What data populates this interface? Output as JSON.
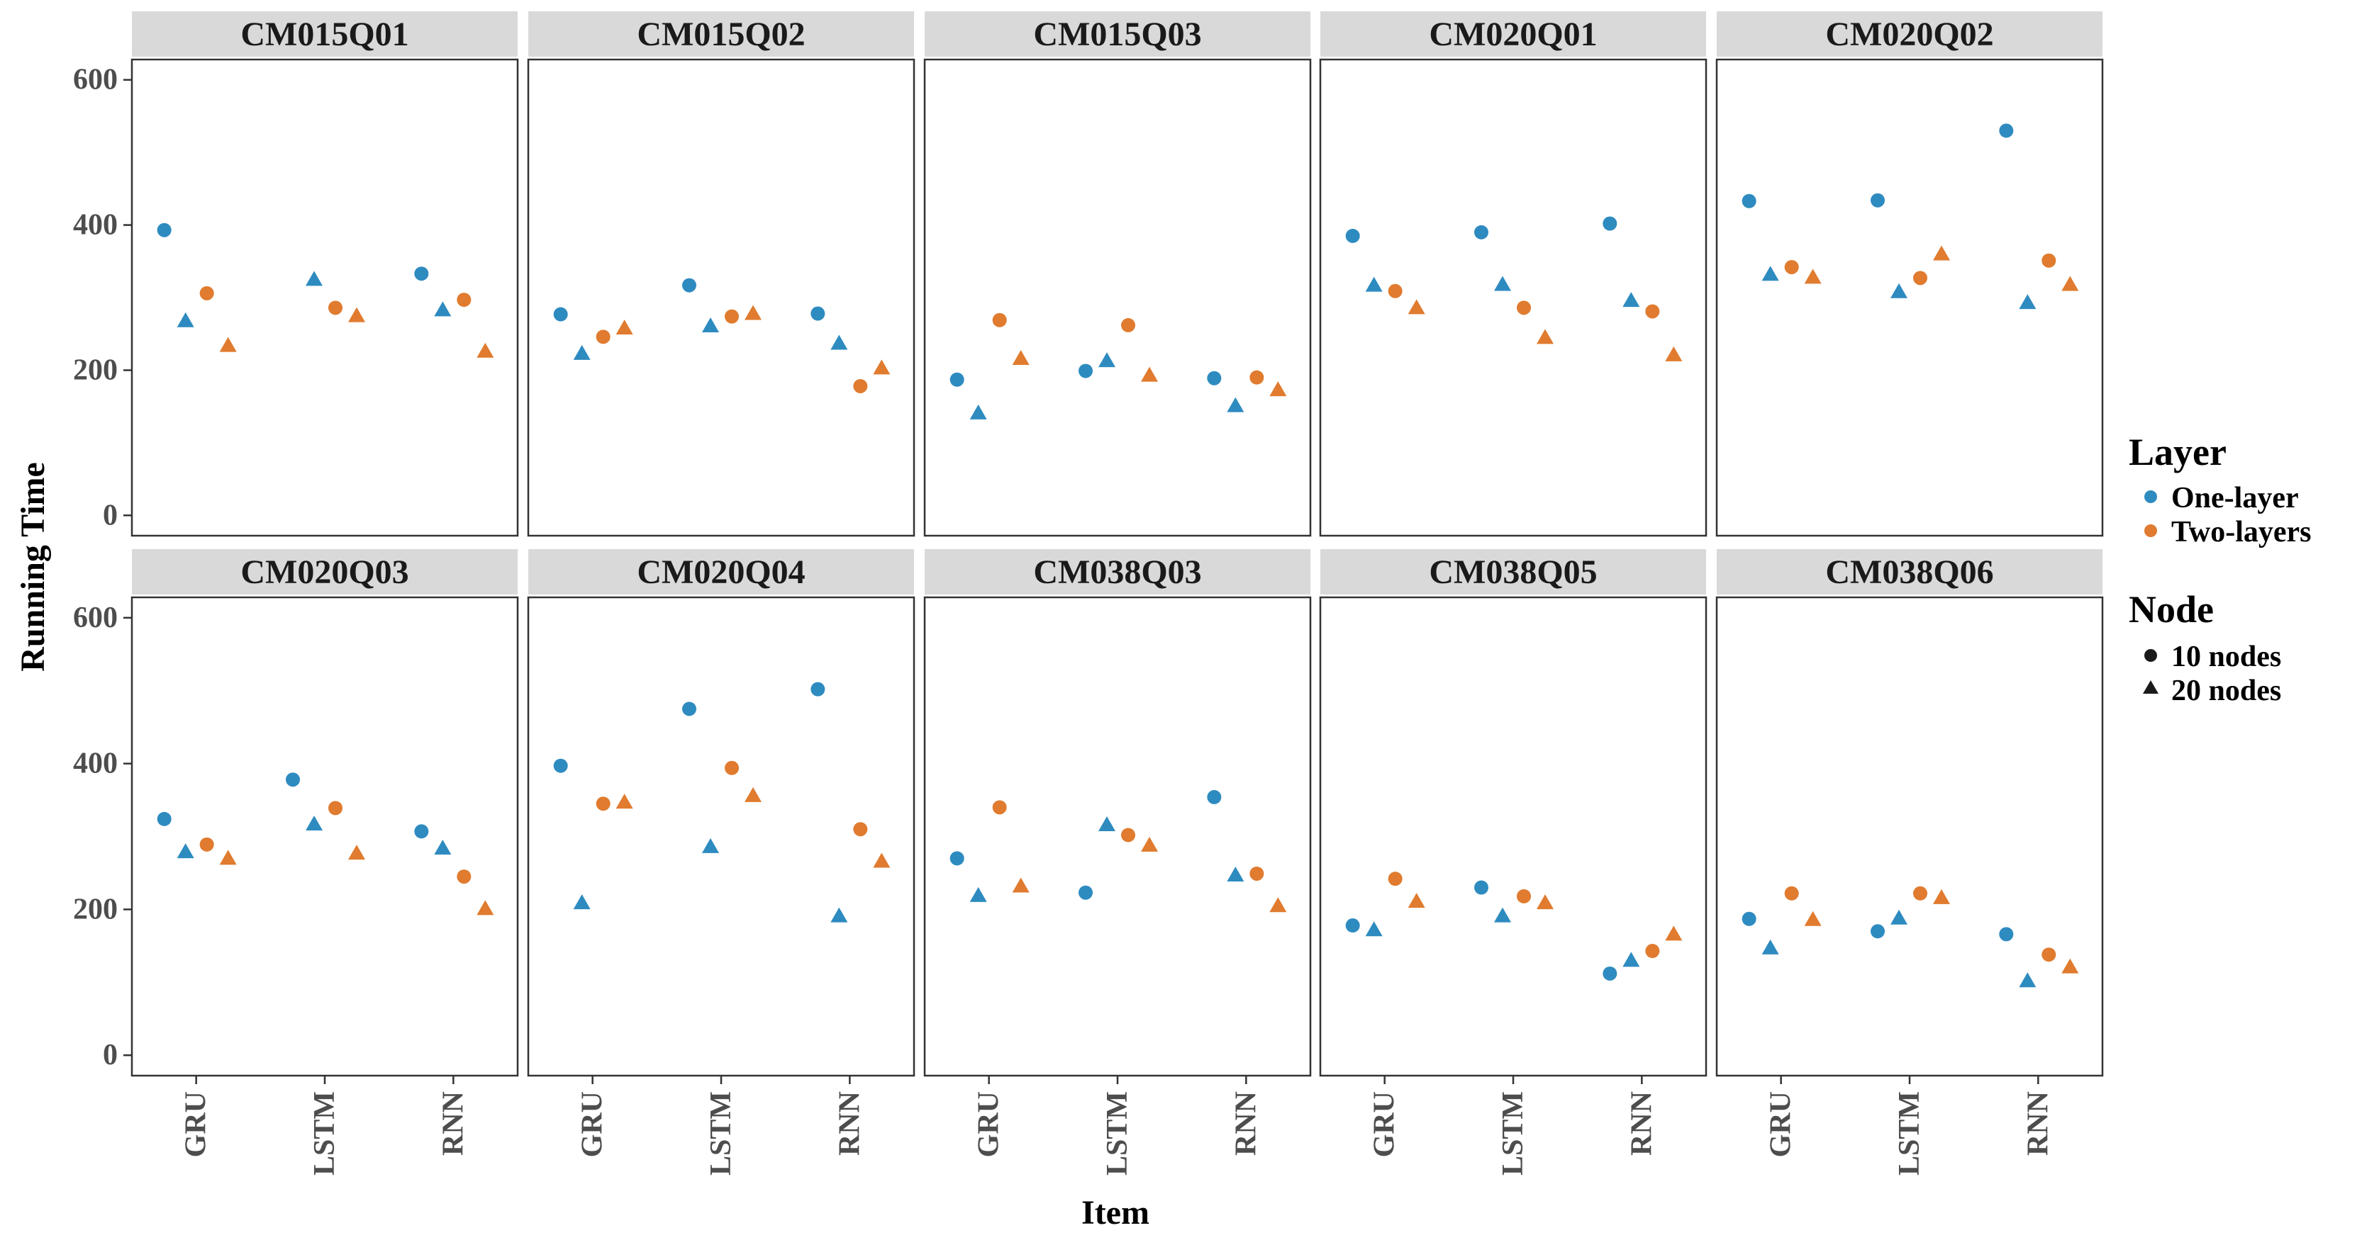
{
  "chart_data": {
    "type": "scatter",
    "xlabel": "Item",
    "ylabel": "Running Time",
    "ylim": [
      -28,
      628
    ],
    "yticks": [
      0,
      200,
      400,
      600
    ],
    "categories": [
      "GRU",
      "LSTM",
      "RNN"
    ],
    "grid": false,
    "legend_position": "right",
    "colors": {
      "One-layer": "#2E8BC0",
      "Two-layers": "#E07B2F"
    },
    "legend": {
      "layer_title": "Layer",
      "layer_items": [
        {
          "label": "One-layer",
          "color": "#2E8BC0"
        },
        {
          "label": "Two-layers",
          "color": "#E07B2F"
        }
      ],
      "node_title": "Node",
      "node_items": [
        {
          "label": "10 nodes",
          "shape": "circle"
        },
        {
          "label": "20 nodes",
          "shape": "triangle"
        }
      ]
    },
    "panels": [
      {
        "title": "CM015Q01",
        "points": [
          {
            "item": "GRU",
            "layer": "One-layer",
            "node": "10 nodes",
            "value": 393
          },
          {
            "item": "GRU",
            "layer": "One-layer",
            "node": "20 nodes",
            "value": 268
          },
          {
            "item": "GRU",
            "layer": "Two-layers",
            "node": "10 nodes",
            "value": 306
          },
          {
            "item": "GRU",
            "layer": "Two-layers",
            "node": "20 nodes",
            "value": 234
          },
          {
            "item": "LSTM",
            "layer": "One-layer",
            "node": "20 nodes",
            "value": 325
          },
          {
            "item": "LSTM",
            "layer": "Two-layers",
            "node": "10 nodes",
            "value": 286
          },
          {
            "item": "LSTM",
            "layer": "Two-layers",
            "node": "20 nodes",
            "value": 275
          },
          {
            "item": "RNN",
            "layer": "One-layer",
            "node": "10 nodes",
            "value": 333
          },
          {
            "item": "RNN",
            "layer": "One-layer",
            "node": "20 nodes",
            "value": 283
          },
          {
            "item": "RNN",
            "layer": "Two-layers",
            "node": "10 nodes",
            "value": 297
          },
          {
            "item": "RNN",
            "layer": "Two-layers",
            "node": "20 nodes",
            "value": 226
          }
        ]
      },
      {
        "title": "CM015Q02",
        "points": [
          {
            "item": "GRU",
            "layer": "One-layer",
            "node": "10 nodes",
            "value": 277
          },
          {
            "item": "GRU",
            "layer": "One-layer",
            "node": "20 nodes",
            "value": 223
          },
          {
            "item": "GRU",
            "layer": "Two-layers",
            "node": "10 nodes",
            "value": 246
          },
          {
            "item": "GRU",
            "layer": "Two-layers",
            "node": "20 nodes",
            "value": 258
          },
          {
            "item": "LSTM",
            "layer": "One-layer",
            "node": "10 nodes",
            "value": 317
          },
          {
            "item": "LSTM",
            "layer": "One-layer",
            "node": "20 nodes",
            "value": 261
          },
          {
            "item": "LSTM",
            "layer": "Two-layers",
            "node": "10 nodes",
            "value": 274
          },
          {
            "item": "LSTM",
            "layer": "Two-layers",
            "node": "20 nodes",
            "value": 278
          },
          {
            "item": "RNN",
            "layer": "One-layer",
            "node": "10 nodes",
            "value": 278
          },
          {
            "item": "RNN",
            "layer": "One-layer",
            "node": "20 nodes",
            "value": 237
          },
          {
            "item": "RNN",
            "layer": "Two-layers",
            "node": "10 nodes",
            "value": 178
          },
          {
            "item": "RNN",
            "layer": "Two-layers",
            "node": "20 nodes",
            "value": 203
          }
        ]
      },
      {
        "title": "CM015Q03",
        "points": [
          {
            "item": "GRU",
            "layer": "One-layer",
            "node": "10 nodes",
            "value": 187
          },
          {
            "item": "GRU",
            "layer": "One-layer",
            "node": "20 nodes",
            "value": 141
          },
          {
            "item": "GRU",
            "layer": "Two-layers",
            "node": "10 nodes",
            "value": 269
          },
          {
            "item": "GRU",
            "layer": "Two-layers",
            "node": "20 nodes",
            "value": 216
          },
          {
            "item": "LSTM",
            "layer": "One-layer",
            "node": "10 nodes",
            "value": 199
          },
          {
            "item": "LSTM",
            "layer": "One-layer",
            "node": "20 nodes",
            "value": 213
          },
          {
            "item": "LSTM",
            "layer": "Two-layers",
            "node": "10 nodes",
            "value": 262
          },
          {
            "item": "LSTM",
            "layer": "Two-layers",
            "node": "20 nodes",
            "value": 193
          },
          {
            "item": "RNN",
            "layer": "One-layer",
            "node": "10 nodes",
            "value": 189
          },
          {
            "item": "RNN",
            "layer": "One-layer",
            "node": "20 nodes",
            "value": 151
          },
          {
            "item": "RNN",
            "layer": "Two-layers",
            "node": "10 nodes",
            "value": 190
          },
          {
            "item": "RNN",
            "layer": "Two-layers",
            "node": "20 nodes",
            "value": 173
          }
        ]
      },
      {
        "title": "CM020Q01",
        "points": [
          {
            "item": "GRU",
            "layer": "One-layer",
            "node": "10 nodes",
            "value": 385
          },
          {
            "item": "GRU",
            "layer": "One-layer",
            "node": "20 nodes",
            "value": 317
          },
          {
            "item": "GRU",
            "layer": "Two-layers",
            "node": "10 nodes",
            "value": 309
          },
          {
            "item": "GRU",
            "layer": "Two-layers",
            "node": "20 nodes",
            "value": 286
          },
          {
            "item": "LSTM",
            "layer": "One-layer",
            "node": "10 nodes",
            "value": 390
          },
          {
            "item": "LSTM",
            "layer": "One-layer",
            "node": "20 nodes",
            "value": 318
          },
          {
            "item": "LSTM",
            "layer": "Two-layers",
            "node": "10 nodes",
            "value": 286
          },
          {
            "item": "LSTM",
            "layer": "Two-layers",
            "node": "20 nodes",
            "value": 245
          },
          {
            "item": "RNN",
            "layer": "One-layer",
            "node": "10 nodes",
            "value": 402
          },
          {
            "item": "RNN",
            "layer": "One-layer",
            "node": "20 nodes",
            "value": 296
          },
          {
            "item": "RNN",
            "layer": "Two-layers",
            "node": "10 nodes",
            "value": 281
          },
          {
            "item": "RNN",
            "layer": "Two-layers",
            "node": "20 nodes",
            "value": 221
          }
        ]
      },
      {
        "title": "CM020Q02",
        "points": [
          {
            "item": "GRU",
            "layer": "One-layer",
            "node": "10 nodes",
            "value": 433
          },
          {
            "item": "GRU",
            "layer": "One-layer",
            "node": "20 nodes",
            "value": 332
          },
          {
            "item": "GRU",
            "layer": "Two-layers",
            "node": "10 nodes",
            "value": 342
          },
          {
            "item": "GRU",
            "layer": "Two-layers",
            "node": "20 nodes",
            "value": 328
          },
          {
            "item": "LSTM",
            "layer": "One-layer",
            "node": "10 nodes",
            "value": 434
          },
          {
            "item": "LSTM",
            "layer": "One-layer",
            "node": "20 nodes",
            "value": 308
          },
          {
            "item": "LSTM",
            "layer": "Two-layers",
            "node": "10 nodes",
            "value": 327
          },
          {
            "item": "LSTM",
            "layer": "Two-layers",
            "node": "20 nodes",
            "value": 360
          },
          {
            "item": "RNN",
            "layer": "One-layer",
            "node": "10 nodes",
            "value": 530
          },
          {
            "item": "RNN",
            "layer": "One-layer",
            "node": "20 nodes",
            "value": 293
          },
          {
            "item": "RNN",
            "layer": "Two-layers",
            "node": "10 nodes",
            "value": 351
          },
          {
            "item": "RNN",
            "layer": "Two-layers",
            "node": "20 nodes",
            "value": 318
          }
        ]
      },
      {
        "title": "CM020Q03",
        "points": [
          {
            "item": "GRU",
            "layer": "One-layer",
            "node": "10 nodes",
            "value": 324
          },
          {
            "item": "GRU",
            "layer": "One-layer",
            "node": "20 nodes",
            "value": 279
          },
          {
            "item": "GRU",
            "layer": "Two-layers",
            "node": "10 nodes",
            "value": 289
          },
          {
            "item": "GRU",
            "layer": "Two-layers",
            "node": "20 nodes",
            "value": 270
          },
          {
            "item": "LSTM",
            "layer": "One-layer",
            "node": "10 nodes",
            "value": 378
          },
          {
            "item": "LSTM",
            "layer": "One-layer",
            "node": "20 nodes",
            "value": 317
          },
          {
            "item": "LSTM",
            "layer": "Two-layers",
            "node": "10 nodes",
            "value": 339
          },
          {
            "item": "LSTM",
            "layer": "Two-layers",
            "node": "20 nodes",
            "value": 277
          },
          {
            "item": "RNN",
            "layer": "One-layer",
            "node": "10 nodes",
            "value": 307
          },
          {
            "item": "RNN",
            "layer": "One-layer",
            "node": "20 nodes",
            "value": 284
          },
          {
            "item": "RNN",
            "layer": "Two-layers",
            "node": "10 nodes",
            "value": 245
          },
          {
            "item": "RNN",
            "layer": "Two-layers",
            "node": "20 nodes",
            "value": 201
          }
        ]
      },
      {
        "title": "CM020Q04",
        "points": [
          {
            "item": "GRU",
            "layer": "One-layer",
            "node": "10 nodes",
            "value": 397
          },
          {
            "item": "GRU",
            "layer": "One-layer",
            "node": "20 nodes",
            "value": 209
          },
          {
            "item": "GRU",
            "layer": "Two-layers",
            "node": "10 nodes",
            "value": 345
          },
          {
            "item": "GRU",
            "layer": "Two-layers",
            "node": "20 nodes",
            "value": 347
          },
          {
            "item": "LSTM",
            "layer": "One-layer",
            "node": "10 nodes",
            "value": 475
          },
          {
            "item": "LSTM",
            "layer": "One-layer",
            "node": "20 nodes",
            "value": 286
          },
          {
            "item": "LSTM",
            "layer": "Two-layers",
            "node": "10 nodes",
            "value": 394
          },
          {
            "item": "LSTM",
            "layer": "Two-layers",
            "node": "20 nodes",
            "value": 356
          },
          {
            "item": "RNN",
            "layer": "One-layer",
            "node": "10 nodes",
            "value": 502
          },
          {
            "item": "RNN",
            "layer": "One-layer",
            "node": "20 nodes",
            "value": 191
          },
          {
            "item": "RNN",
            "layer": "Two-layers",
            "node": "10 nodes",
            "value": 310
          },
          {
            "item": "RNN",
            "layer": "Two-layers",
            "node": "20 nodes",
            "value": 266
          }
        ]
      },
      {
        "title": "CM038Q03",
        "points": [
          {
            "item": "GRU",
            "layer": "One-layer",
            "node": "10 nodes",
            "value": 270
          },
          {
            "item": "GRU",
            "layer": "One-layer",
            "node": "20 nodes",
            "value": 219
          },
          {
            "item": "GRU",
            "layer": "Two-layers",
            "node": "10 nodes",
            "value": 340
          },
          {
            "item": "GRU",
            "layer": "Two-layers",
            "node": "20 nodes",
            "value": 232
          },
          {
            "item": "LSTM",
            "layer": "One-layer",
            "node": "10 nodes",
            "value": 223
          },
          {
            "item": "LSTM",
            "layer": "One-layer",
            "node": "20 nodes",
            "value": 316
          },
          {
            "item": "LSTM",
            "layer": "Two-layers",
            "node": "10 nodes",
            "value": 302
          },
          {
            "item": "LSTM",
            "layer": "Two-layers",
            "node": "20 nodes",
            "value": 288
          },
          {
            "item": "RNN",
            "layer": "One-layer",
            "node": "10 nodes",
            "value": 354
          },
          {
            "item": "RNN",
            "layer": "One-layer",
            "node": "20 nodes",
            "value": 247
          },
          {
            "item": "RNN",
            "layer": "Two-layers",
            "node": "10 nodes",
            "value": 249
          },
          {
            "item": "RNN",
            "layer": "Two-layers",
            "node": "20 nodes",
            "value": 205
          }
        ]
      },
      {
        "title": "CM038Q05",
        "points": [
          {
            "item": "GRU",
            "layer": "One-layer",
            "node": "10 nodes",
            "value": 178
          },
          {
            "item": "GRU",
            "layer": "One-layer",
            "node": "20 nodes",
            "value": 172
          },
          {
            "item": "GRU",
            "layer": "Two-layers",
            "node": "10 nodes",
            "value": 242
          },
          {
            "item": "GRU",
            "layer": "Two-layers",
            "node": "20 nodes",
            "value": 211
          },
          {
            "item": "LSTM",
            "layer": "One-layer",
            "node": "10 nodes",
            "value": 230
          },
          {
            "item": "LSTM",
            "layer": "One-layer",
            "node": "20 nodes",
            "value": 191
          },
          {
            "item": "LSTM",
            "layer": "Two-layers",
            "node": "10 nodes",
            "value": 218
          },
          {
            "item": "LSTM",
            "layer": "Two-layers",
            "node": "20 nodes",
            "value": 209
          },
          {
            "item": "RNN",
            "layer": "One-layer",
            "node": "10 nodes",
            "value": 112
          },
          {
            "item": "RNN",
            "layer": "One-layer",
            "node": "20 nodes",
            "value": 130
          },
          {
            "item": "RNN",
            "layer": "Two-layers",
            "node": "10 nodes",
            "value": 143
          },
          {
            "item": "RNN",
            "layer": "Two-layers",
            "node": "20 nodes",
            "value": 166
          }
        ]
      },
      {
        "title": "CM038Q06",
        "points": [
          {
            "item": "GRU",
            "layer": "One-layer",
            "node": "10 nodes",
            "value": 187
          },
          {
            "item": "GRU",
            "layer": "One-layer",
            "node": "20 nodes",
            "value": 147
          },
          {
            "item": "GRU",
            "layer": "Two-layers",
            "node": "10 nodes",
            "value": 222
          },
          {
            "item": "GRU",
            "layer": "Two-layers",
            "node": "20 nodes",
            "value": 186
          },
          {
            "item": "LSTM",
            "layer": "One-layer",
            "node": "10 nodes",
            "value": 170
          },
          {
            "item": "LSTM",
            "layer": "One-layer",
            "node": "20 nodes",
            "value": 188
          },
          {
            "item": "LSTM",
            "layer": "Two-layers",
            "node": "10 nodes",
            "value": 222
          },
          {
            "item": "LSTM",
            "layer": "Two-layers",
            "node": "20 nodes",
            "value": 216
          },
          {
            "item": "RNN",
            "layer": "One-layer",
            "node": "10 nodes",
            "value": 166
          },
          {
            "item": "RNN",
            "layer": "One-layer",
            "node": "20 nodes",
            "value": 102
          },
          {
            "item": "RNN",
            "layer": "Two-layers",
            "node": "10 nodes",
            "value": 138
          },
          {
            "item": "RNN",
            "layer": "Two-layers",
            "node": "20 nodes",
            "value": 121
          }
        ]
      }
    ]
  }
}
